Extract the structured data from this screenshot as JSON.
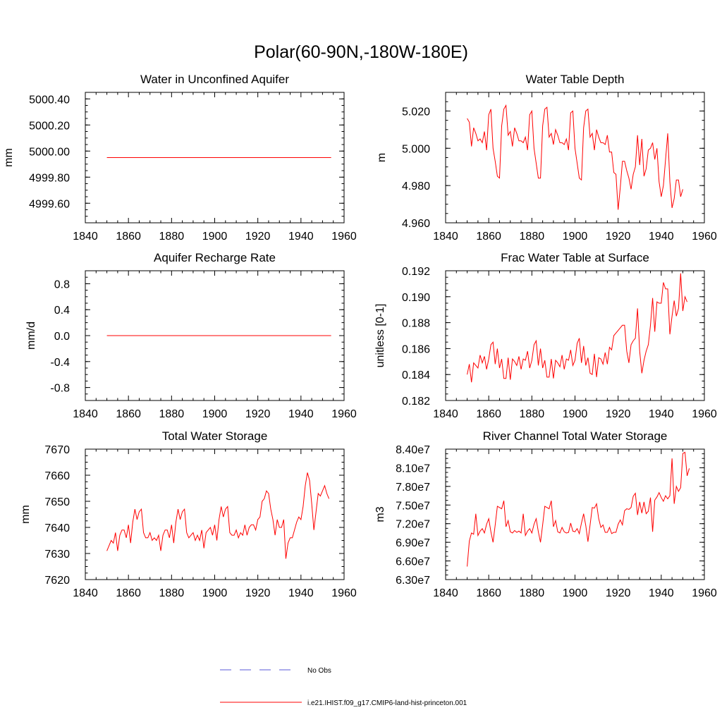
{
  "figure": {
    "title": "Polar(60-90N,-180W-180E)"
  },
  "legend": {
    "items": [
      {
        "label": "No Obs",
        "style": "dashed",
        "color": "#5a5ad8"
      },
      {
        "label": "i.e21.IHIST.f09_g17.CMIP6-land-hist-princeton.001",
        "style": "solid",
        "color": "#ff0000"
      }
    ]
  },
  "chart_data": [
    {
      "type": "line",
      "title": "Water in Unconfined Aquifer",
      "xlabel": "",
      "ylabel": "mm",
      "xlim": [
        1840,
        1960
      ],
      "ylim": [
        4999.45,
        5000.45
      ],
      "xticks": [
        1840,
        1860,
        1880,
        1900,
        1920,
        1940,
        1960
      ],
      "yticks": [
        4999.6,
        4999.8,
        5000.0,
        5000.2,
        5000.4
      ],
      "ytick_labels": [
        "4999.60",
        "4999.80",
        "5000.00",
        "5000.20",
        "5000.40"
      ],
      "yminor_step": 0.05,
      "color": "#ff0000",
      "x_start": 1850,
      "x_step": 1,
      "y": [
        4999.95,
        4999.95,
        4999.95,
        4999.95,
        4999.95,
        4999.95,
        4999.95,
        4999.95,
        4999.95,
        4999.95,
        4999.95,
        4999.95,
        4999.95,
        4999.95,
        4999.95,
        4999.95,
        4999.95,
        4999.95,
        4999.95,
        4999.95,
        4999.95,
        4999.95,
        4999.95,
        4999.95,
        4999.95,
        4999.95,
        4999.95,
        4999.95,
        4999.95,
        4999.95,
        4999.95,
        4999.95,
        4999.95,
        4999.95,
        4999.95,
        4999.95,
        4999.95,
        4999.95,
        4999.95,
        4999.95,
        4999.95,
        4999.95,
        4999.95,
        4999.95,
        4999.95,
        4999.95,
        4999.95,
        4999.95,
        4999.95,
        4999.95,
        4999.95,
        4999.95,
        4999.95,
        4999.95,
        4999.95,
        4999.95,
        4999.95,
        4999.95,
        4999.95,
        4999.95,
        4999.95,
        4999.95,
        4999.95,
        4999.95,
        4999.95,
        4999.95,
        4999.95,
        4999.95,
        4999.95,
        4999.95,
        4999.95,
        4999.95,
        4999.95,
        4999.95,
        4999.95,
        4999.95,
        4999.95,
        4999.95,
        4999.95,
        4999.95,
        4999.95,
        4999.95,
        4999.95,
        4999.95,
        4999.95,
        4999.95,
        4999.95,
        4999.95,
        4999.95,
        4999.95,
        4999.95,
        4999.95,
        4999.95,
        4999.95,
        4999.95,
        4999.95,
        4999.95,
        4999.95,
        4999.95,
        4999.95,
        4999.95,
        4999.95,
        4999.95,
        4999.95,
        4999.95
      ]
    },
    {
      "type": "line",
      "title": "Water Table Depth",
      "xlabel": "",
      "ylabel": "m",
      "xlim": [
        1840,
        1960
      ],
      "ylim": [
        4.96,
        5.03
      ],
      "xticks": [
        1840,
        1860,
        1880,
        1900,
        1920,
        1940,
        1960
      ],
      "yticks": [
        4.96,
        4.98,
        5.0,
        5.02
      ],
      "ytick_labels": [
        "4.960",
        "4.980",
        "5.000",
        "5.020"
      ],
      "yminor_step": 0.005,
      "color": "#ff0000",
      "x_start": 1850,
      "x_step": 1,
      "y": [
        5.016,
        5.014,
        5.001,
        5.011,
        5.008,
        5.004,
        5.005,
        5.003,
        5.009,
        4.999,
        5.018,
        5.021,
        5.0,
        4.993,
        4.985,
        4.984,
        5.012,
        5.021,
        5.023,
        5.007,
        5.009,
        5.001,
        5.011,
        5.008,
        5.004,
        5.004,
        5.003,
        5.006,
        4.999,
        5.018,
        5.02,
        5.0,
        4.992,
        4.984,
        4.984,
        5.012,
        5.021,
        5.022,
        5.006,
        5.008,
        5.002,
        5.01,
        5.007,
        5.003,
        5.003,
        5.002,
        5.005,
        4.999,
        5.019,
        5.02,
        5.0,
        4.992,
        4.984,
        4.983,
        5.011,
        5.02,
        5.021,
        5.006,
        5.008,
        4.999,
        5.01,
        5.006,
        5.003,
        5.003,
        5.002,
        5.007,
        4.998,
        4.998,
        4.987,
        4.986,
        4.967,
        4.979,
        4.993,
        4.993,
        4.988,
        4.984,
        4.978,
        4.986,
        4.99,
        5.007,
        4.991,
        5.005,
        4.985,
        4.989,
        4.999,
        5.0,
        5.003,
        4.994,
        5.0,
        4.982,
        4.974,
        4.98,
        4.994,
        5.008,
        4.982,
        4.968,
        4.973,
        4.983,
        4.983,
        4.974,
        4.978
      ]
    },
    {
      "type": "line",
      "title": "Aquifer Recharge Rate",
      "xlabel": "",
      "ylabel": "mm/d",
      "xlim": [
        1840,
        1960
      ],
      "ylim": [
        -1.0,
        1.0
      ],
      "xticks": [
        1840,
        1860,
        1880,
        1900,
        1920,
        1940,
        1960
      ],
      "yticks": [
        -0.8,
        -0.4,
        0.0,
        0.4,
        0.8
      ],
      "ytick_labels": [
        "-0.8",
        "-0.4",
        "0.0",
        "0.4",
        "0.8"
      ],
      "yminor_step": 0.1,
      "color": "#ff0000",
      "x_start": 1850,
      "x_step": 1,
      "y": [
        0.0,
        0.0,
        0.0,
        0.0,
        0.0,
        0.0,
        0.0,
        0.0,
        0.0,
        0.0,
        0.0,
        0.0,
        0.0,
        0.0,
        0.0,
        0.0,
        0.0,
        0.0,
        0.0,
        0.0,
        0.0,
        0.0,
        0.0,
        0.0,
        0.0,
        0.0,
        0.0,
        0.0,
        0.0,
        0.0,
        0.0,
        0.0,
        0.0,
        0.0,
        0.0,
        0.0,
        0.0,
        0.0,
        0.0,
        0.0,
        0.0,
        0.0,
        0.0,
        0.0,
        0.0,
        0.0,
        0.0,
        0.0,
        0.0,
        0.0,
        0.0,
        0.0,
        0.0,
        0.0,
        0.0,
        0.0,
        0.0,
        0.0,
        0.0,
        0.0,
        0.0,
        0.0,
        0.0,
        0.0,
        0.0,
        0.0,
        0.0,
        0.0,
        0.0,
        0.0,
        0.0,
        0.0,
        0.0,
        0.0,
        0.0,
        0.0,
        0.0,
        0.0,
        0.0,
        0.0,
        0.0,
        0.0,
        0.0,
        0.0,
        0.0,
        0.0,
        0.0,
        0.0,
        0.0,
        0.0,
        0.0,
        0.0,
        0.0,
        0.0,
        0.0,
        0.0,
        0.0,
        0.0,
        0.0,
        0.0,
        0.0,
        0.0,
        0.0,
        0.0,
        0.0
      ]
    },
    {
      "type": "line",
      "title": "Frac Water Table at Surface",
      "xlabel": "",
      "ylabel": "unitless [0-1]",
      "xlim": [
        1840,
        1960
      ],
      "ylim": [
        0.182,
        0.192
      ],
      "xticks": [
        1840,
        1860,
        1880,
        1900,
        1920,
        1940,
        1960
      ],
      "yticks": [
        0.182,
        0.184,
        0.186,
        0.188,
        0.19,
        0.192
      ],
      "ytick_labels": [
        "0.182",
        "0.184",
        "0.186",
        "0.188",
        "0.190",
        "0.192"
      ],
      "yminor_step": 0.0005,
      "color": "#ff0000",
      "x_start": 1850,
      "x_step": 1,
      "y": [
        0.184,
        0.1848,
        0.1834,
        0.1849,
        0.1847,
        0.1845,
        0.1855,
        0.1849,
        0.1854,
        0.1844,
        0.1852,
        0.1863,
        0.1865,
        0.1848,
        0.186,
        0.1845,
        0.1852,
        0.1837,
        0.1837,
        0.1853,
        0.1836,
        0.1852,
        0.185,
        0.1847,
        0.1854,
        0.1844,
        0.1852,
        0.1851,
        0.1858,
        0.1845,
        0.1851,
        0.1863,
        0.1866,
        0.1847,
        0.186,
        0.1845,
        0.1851,
        0.1838,
        0.1838,
        0.1852,
        0.1837,
        0.1851,
        0.1849,
        0.1846,
        0.1855,
        0.1844,
        0.1852,
        0.1851,
        0.1859,
        0.1847,
        0.1851,
        0.1864,
        0.1868,
        0.1849,
        0.1862,
        0.1847,
        0.1853,
        0.1841,
        0.184,
        0.1856,
        0.1838,
        0.1853,
        0.1852,
        0.1848,
        0.1857,
        0.1848,
        0.1861,
        0.1859,
        0.187,
        0.1872,
        0.1874,
        0.1876,
        0.1878,
        0.1878,
        0.1858,
        0.1849,
        0.1863,
        0.1866,
        0.1868,
        0.1891,
        0.1858,
        0.1841,
        0.1851,
        0.1858,
        0.1863,
        0.1878,
        0.1899,
        0.1873,
        0.1896,
        0.1895,
        0.1895,
        0.1911,
        0.1906,
        0.1906,
        0.1871,
        0.1885,
        0.1897,
        0.1885,
        0.1891,
        0.1918,
        0.1889,
        0.19,
        0.1896
      ]
    },
    {
      "type": "line",
      "title": "Total Water Storage",
      "xlabel": "",
      "ylabel": "mm",
      "xlim": [
        1840,
        1960
      ],
      "ylim": [
        7620,
        7670
      ],
      "xticks": [
        1840,
        1860,
        1880,
        1900,
        1920,
        1940,
        1960
      ],
      "yticks": [
        7620,
        7630,
        7640,
        7650,
        7660,
        7670
      ],
      "ytick_labels": [
        "7620",
        "7630",
        "7640",
        "7650",
        "7660",
        "7670"
      ],
      "yminor_step": 2.5,
      "color": "#ff0000",
      "x_start": 1850,
      "x_step": 1,
      "y": [
        7631,
        7633,
        7635,
        7634,
        7638,
        7631,
        7637,
        7639,
        7639,
        7636,
        7641,
        7634,
        7642,
        7647,
        7643,
        7646,
        7647,
        7638,
        7636,
        7636,
        7638,
        7635,
        7636,
        7635,
        7637,
        7631,
        7637,
        7639,
        7639,
        7636,
        7641,
        7634,
        7642,
        7647,
        7643,
        7646,
        7647,
        7638,
        7636,
        7637,
        7638,
        7635,
        7637,
        7635,
        7639,
        7632,
        7638,
        7639,
        7640,
        7637,
        7641,
        7635,
        7643,
        7648,
        7644,
        7647,
        7648,
        7638,
        7637,
        7637,
        7639,
        7636,
        7638,
        7637,
        7641,
        7637,
        7640,
        7641,
        7641,
        7639,
        7643,
        7644,
        7650,
        7651,
        7654,
        7653,
        7647,
        7643,
        7637,
        7643,
        7640,
        7640,
        7643,
        7628,
        7634,
        7636,
        7636,
        7639,
        7642,
        7644,
        7643,
        7648,
        7656,
        7661,
        7658,
        7649,
        7639,
        7646,
        7653,
        7652,
        7654,
        7656,
        7653,
        7651
      ]
    },
    {
      "type": "line",
      "title": "River Channel Total Water Storage",
      "xlabel": "",
      "ylabel": "m3",
      "xlim": [
        1840,
        1960
      ],
      "ylim": [
        63000000,
        84000000
      ],
      "xticks": [
        1840,
        1860,
        1880,
        1900,
        1920,
        1940,
        1960
      ],
      "yticks": [
        63000000,
        66000000,
        69000000,
        72000000,
        75000000,
        78000000,
        81000000,
        84000000
      ],
      "ytick_labels": [
        "6.30e7",
        "6.60e7",
        "6.90e7",
        "7.20e7",
        "7.50e7",
        "7.80e7",
        "8.10e7",
        "8.40e7"
      ],
      "yminor_step": 750000,
      "color": "#ff0000",
      "x_start": 1850,
      "x_step": 1,
      "y": [
        65100000,
        69200000,
        70500000,
        70300000,
        73600000,
        70100000,
        70800000,
        71200000,
        70500000,
        71900000,
        72800000,
        70700000,
        69000000,
        71800000,
        74800000,
        74600000,
        74400000,
        75700000,
        71500000,
        72500000,
        70700000,
        70500000,
        70900000,
        70600000,
        70800000,
        70500000,
        73600000,
        70100000,
        70800000,
        71200000,
        70500000,
        71900000,
        72800000,
        70700000,
        69000000,
        71800000,
        74800000,
        74600000,
        74400000,
        75700000,
        71500000,
        72500000,
        70700000,
        70500000,
        71400000,
        70700000,
        70500000,
        70600000,
        72100000,
        70800000,
        70700000,
        71200000,
        70400000,
        72100000,
        73600000,
        71700000,
        69100000,
        71800000,
        74600000,
        74500000,
        75200000,
        72800000,
        71400000,
        71800000,
        70600000,
        70600000,
        71400000,
        70400000,
        70600000,
        70600000,
        71900000,
        72600000,
        71800000,
        74100000,
        74400000,
        74300000,
        74600000,
        76400000,
        76900000,
        73400000,
        75500000,
        73700000,
        75500000,
        73600000,
        74000000,
        76200000,
        70700000,
        75800000,
        76300000,
        77000000,
        76200000,
        75600000,
        76500000,
        76000000,
        76500000,
        82500000,
        75200000,
        78000000,
        77200000,
        77800000,
        83300000,
        83500000,
        79700000,
        80900000
      ]
    }
  ]
}
